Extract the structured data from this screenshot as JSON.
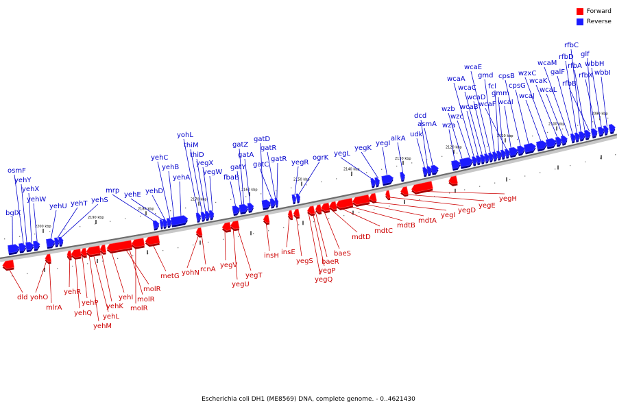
{
  "colors": {
    "forward": "#ff0000",
    "reverse": "#1b1bff",
    "forward_shadow": "#a30000",
    "reverse_shadow": "#00008a",
    "forward_label": "#cc0000",
    "reverse_label": "#0000cc",
    "backbone": "#6d6d6d"
  },
  "legend": {
    "forward_label": "Forward",
    "reverse_label": "Reverse"
  },
  "caption": "Escherichia coli DH1 (ME8569) DNA, complete genome. - 0..4621430",
  "scale": {
    "labels": [
      "2090 kbp",
      "2100 kbp",
      "2110 kbp",
      "2120 kbp",
      "2130 kbp",
      "2140 kbp",
      "2150 kbp",
      "2160 kbp",
      "2170 kbp",
      "2180 kbp",
      "2190 kbp",
      "2200 kbp"
    ]
  },
  "reverse_genes": [
    "bglX",
    "osmF",
    "yehY",
    "yehX",
    "yehW",
    "yehU",
    "yehT",
    "yehS",
    "mrp",
    "yehE",
    "yehD",
    "yehC",
    "yehB",
    "yehA",
    "yohL",
    "thiM",
    "thiD",
    "yegX",
    "yegW",
    "fbaB",
    "gatY",
    "gatZ",
    "gatA",
    "gatD",
    "gatC",
    "gatR",
    "gatR",
    "yegR",
    "ogrK",
    "yegL",
    "yegK",
    "yegI",
    "alkA",
    "udk",
    "dcd",
    "asmA",
    "wza",
    "wzb",
    "wzc",
    "wcaA",
    "wcaB",
    "wcaC",
    "wcaD",
    "wcaE",
    "gmd",
    "fcl",
    "gmm",
    "wcaF",
    "wcaI",
    "cpsB",
    "cpsG",
    "wcaJ",
    "wzxC",
    "wcaK",
    "wcaL",
    "wcaM",
    "galF",
    "rfbD",
    "rfbC",
    "rfbA",
    "rfbB",
    "glf",
    "rfbX",
    "wbbH",
    "wbbI"
  ],
  "forward_genes": [
    "dld",
    "yohO",
    "mlrA",
    "yehR",
    "yehQ",
    "yehP",
    "yehM",
    "yehL",
    "yehK",
    "yehI",
    "molR",
    "molR",
    "molR",
    "metG",
    "yohN",
    "rcnA",
    "yegV",
    "yegU",
    "yegT",
    "insH",
    "insE",
    "yegS",
    "yegQ",
    "yegP",
    "baeR",
    "baeS",
    "mdtD",
    "mdtC",
    "mdtB",
    "mdtA",
    "yegI",
    "yegD",
    "yegE",
    "yegH"
  ]
}
